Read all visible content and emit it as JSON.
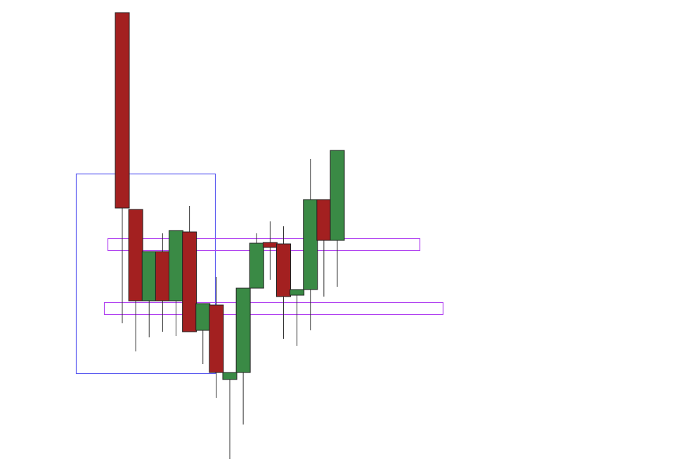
{
  "chart_data": {
    "type": "candlestick",
    "open": [
      655,
      375,
      245,
      315,
      245,
      343,
      203,
      239,
      133,
      143,
      263,
      328,
      326,
      253,
      261,
      389,
      331
    ],
    "high": [
      655,
      375,
      315,
      341,
      345,
      380,
      241,
      279,
      143,
      263,
      341,
      358,
      351,
      261,
      447,
      389,
      459
    ],
    "low": [
      213,
      173,
      193,
      201,
      195,
      201,
      155,
      107,
      20,
      69,
      263,
      275,
      191,
      181,
      203,
      251,
      265
    ],
    "close": [
      377,
      245,
      315,
      245,
      345,
      201,
      241,
      143,
      143,
      263,
      327,
      321,
      251,
      261,
      389,
      331,
      459
    ],
    "up_color": "#3a8a45",
    "down_color": "#a32020",
    "ylim": [
      0,
      673
    ]
  }
}
